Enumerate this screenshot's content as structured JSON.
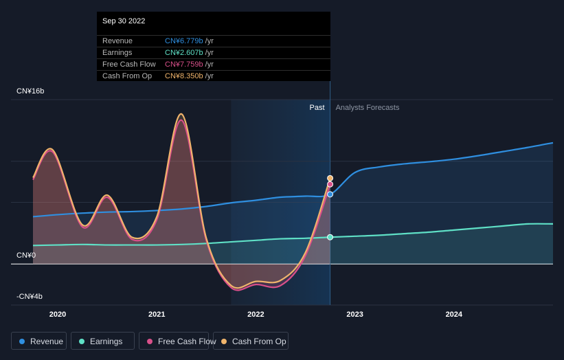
{
  "tooltip": {
    "date": "Sep 30 2022",
    "rows": [
      {
        "label": "Revenue",
        "value": "CN¥6.779b",
        "unit": "/yr",
        "color": "#2f8fe0"
      },
      {
        "label": "Earnings",
        "value": "CN¥2.607b",
        "unit": "/yr",
        "color": "#5fe0c6"
      },
      {
        "label": "Free Cash Flow",
        "value": "CN¥7.759b",
        "unit": "/yr",
        "color": "#d9508a"
      },
      {
        "label": "Cash From Op",
        "value": "CN¥8.350b",
        "unit": "/yr",
        "color": "#f0b46c"
      }
    ]
  },
  "legend": [
    {
      "label": "Revenue",
      "color": "#2f8fe0"
    },
    {
      "label": "Earnings",
      "color": "#5fe0c6"
    },
    {
      "label": "Free Cash Flow",
      "color": "#d9508a"
    },
    {
      "label": "Cash From Op",
      "color": "#f0b46c"
    }
  ],
  "chart_data": {
    "type": "line",
    "y_labels": [
      "CN¥16b",
      "CN¥0",
      "-CN¥4b"
    ],
    "ylim": [
      -4,
      16
    ],
    "xlim": [
      2019.75,
      2025.0
    ],
    "x_ticks": [
      "2020",
      "2021",
      "2022",
      "2023",
      "2024"
    ],
    "x_tick_values": [
      2020,
      2021,
      2022,
      2023,
      2024
    ],
    "region_labels": {
      "past": "Past",
      "forecast": "Analysts Forecasts"
    },
    "past_end": 2022.75,
    "grid": true,
    "series": [
      {
        "name": "Revenue",
        "color": "#2f8fe0",
        "x": [
          2019.75,
          2020.0,
          2020.25,
          2020.5,
          2020.75,
          2021.0,
          2021.25,
          2021.5,
          2021.75,
          2022.0,
          2022.25,
          2022.5,
          2022.75,
          2023.0,
          2023.25,
          2023.5,
          2023.75,
          2024.0,
          2024.25,
          2024.5,
          2024.75,
          2025.0
        ],
        "y": [
          4.6,
          4.8,
          4.95,
          5.05,
          5.1,
          5.2,
          5.35,
          5.6,
          5.95,
          6.2,
          6.5,
          6.6,
          6.779,
          8.9,
          9.45,
          9.75,
          9.95,
          10.2,
          10.55,
          10.95,
          11.35,
          11.8
        ]
      },
      {
        "name": "Earnings",
        "color": "#5fe0c6",
        "x": [
          2019.75,
          2020.0,
          2020.25,
          2020.5,
          2020.75,
          2021.0,
          2021.25,
          2021.5,
          2021.75,
          2022.0,
          2022.25,
          2022.5,
          2022.75,
          2023.0,
          2023.25,
          2023.5,
          2023.75,
          2024.0,
          2024.25,
          2024.5,
          2024.75,
          2025.0
        ],
        "y": [
          1.8,
          1.85,
          1.9,
          1.85,
          1.85,
          1.85,
          1.9,
          2.0,
          2.15,
          2.3,
          2.45,
          2.5,
          2.607,
          2.7,
          2.8,
          2.95,
          3.1,
          3.3,
          3.5,
          3.7,
          3.9,
          3.9
        ]
      },
      {
        "name": "Free Cash Flow",
        "color": "#d9508a",
        "x": [
          2019.75,
          2019.95,
          2020.25,
          2020.5,
          2020.75,
          2021.0,
          2021.25,
          2021.5,
          2021.75,
          2022.0,
          2022.25,
          2022.5,
          2022.75
        ],
        "y": [
          8.2,
          10.9,
          3.6,
          6.5,
          2.4,
          4.3,
          14.0,
          2.3,
          -2.3,
          -2.0,
          -2.1,
          0.8,
          7.759
        ]
      },
      {
        "name": "Cash From Op",
        "color": "#f0b46c",
        "x": [
          2019.75,
          2019.95,
          2020.25,
          2020.5,
          2020.75,
          2021.0,
          2021.25,
          2021.5,
          2021.75,
          2022.0,
          2022.25,
          2022.5,
          2022.75
        ],
        "y": [
          8.4,
          11.1,
          3.8,
          6.7,
          2.6,
          4.6,
          14.6,
          2.5,
          -2.1,
          -1.7,
          -1.6,
          1.1,
          8.35
        ]
      }
    ]
  }
}
